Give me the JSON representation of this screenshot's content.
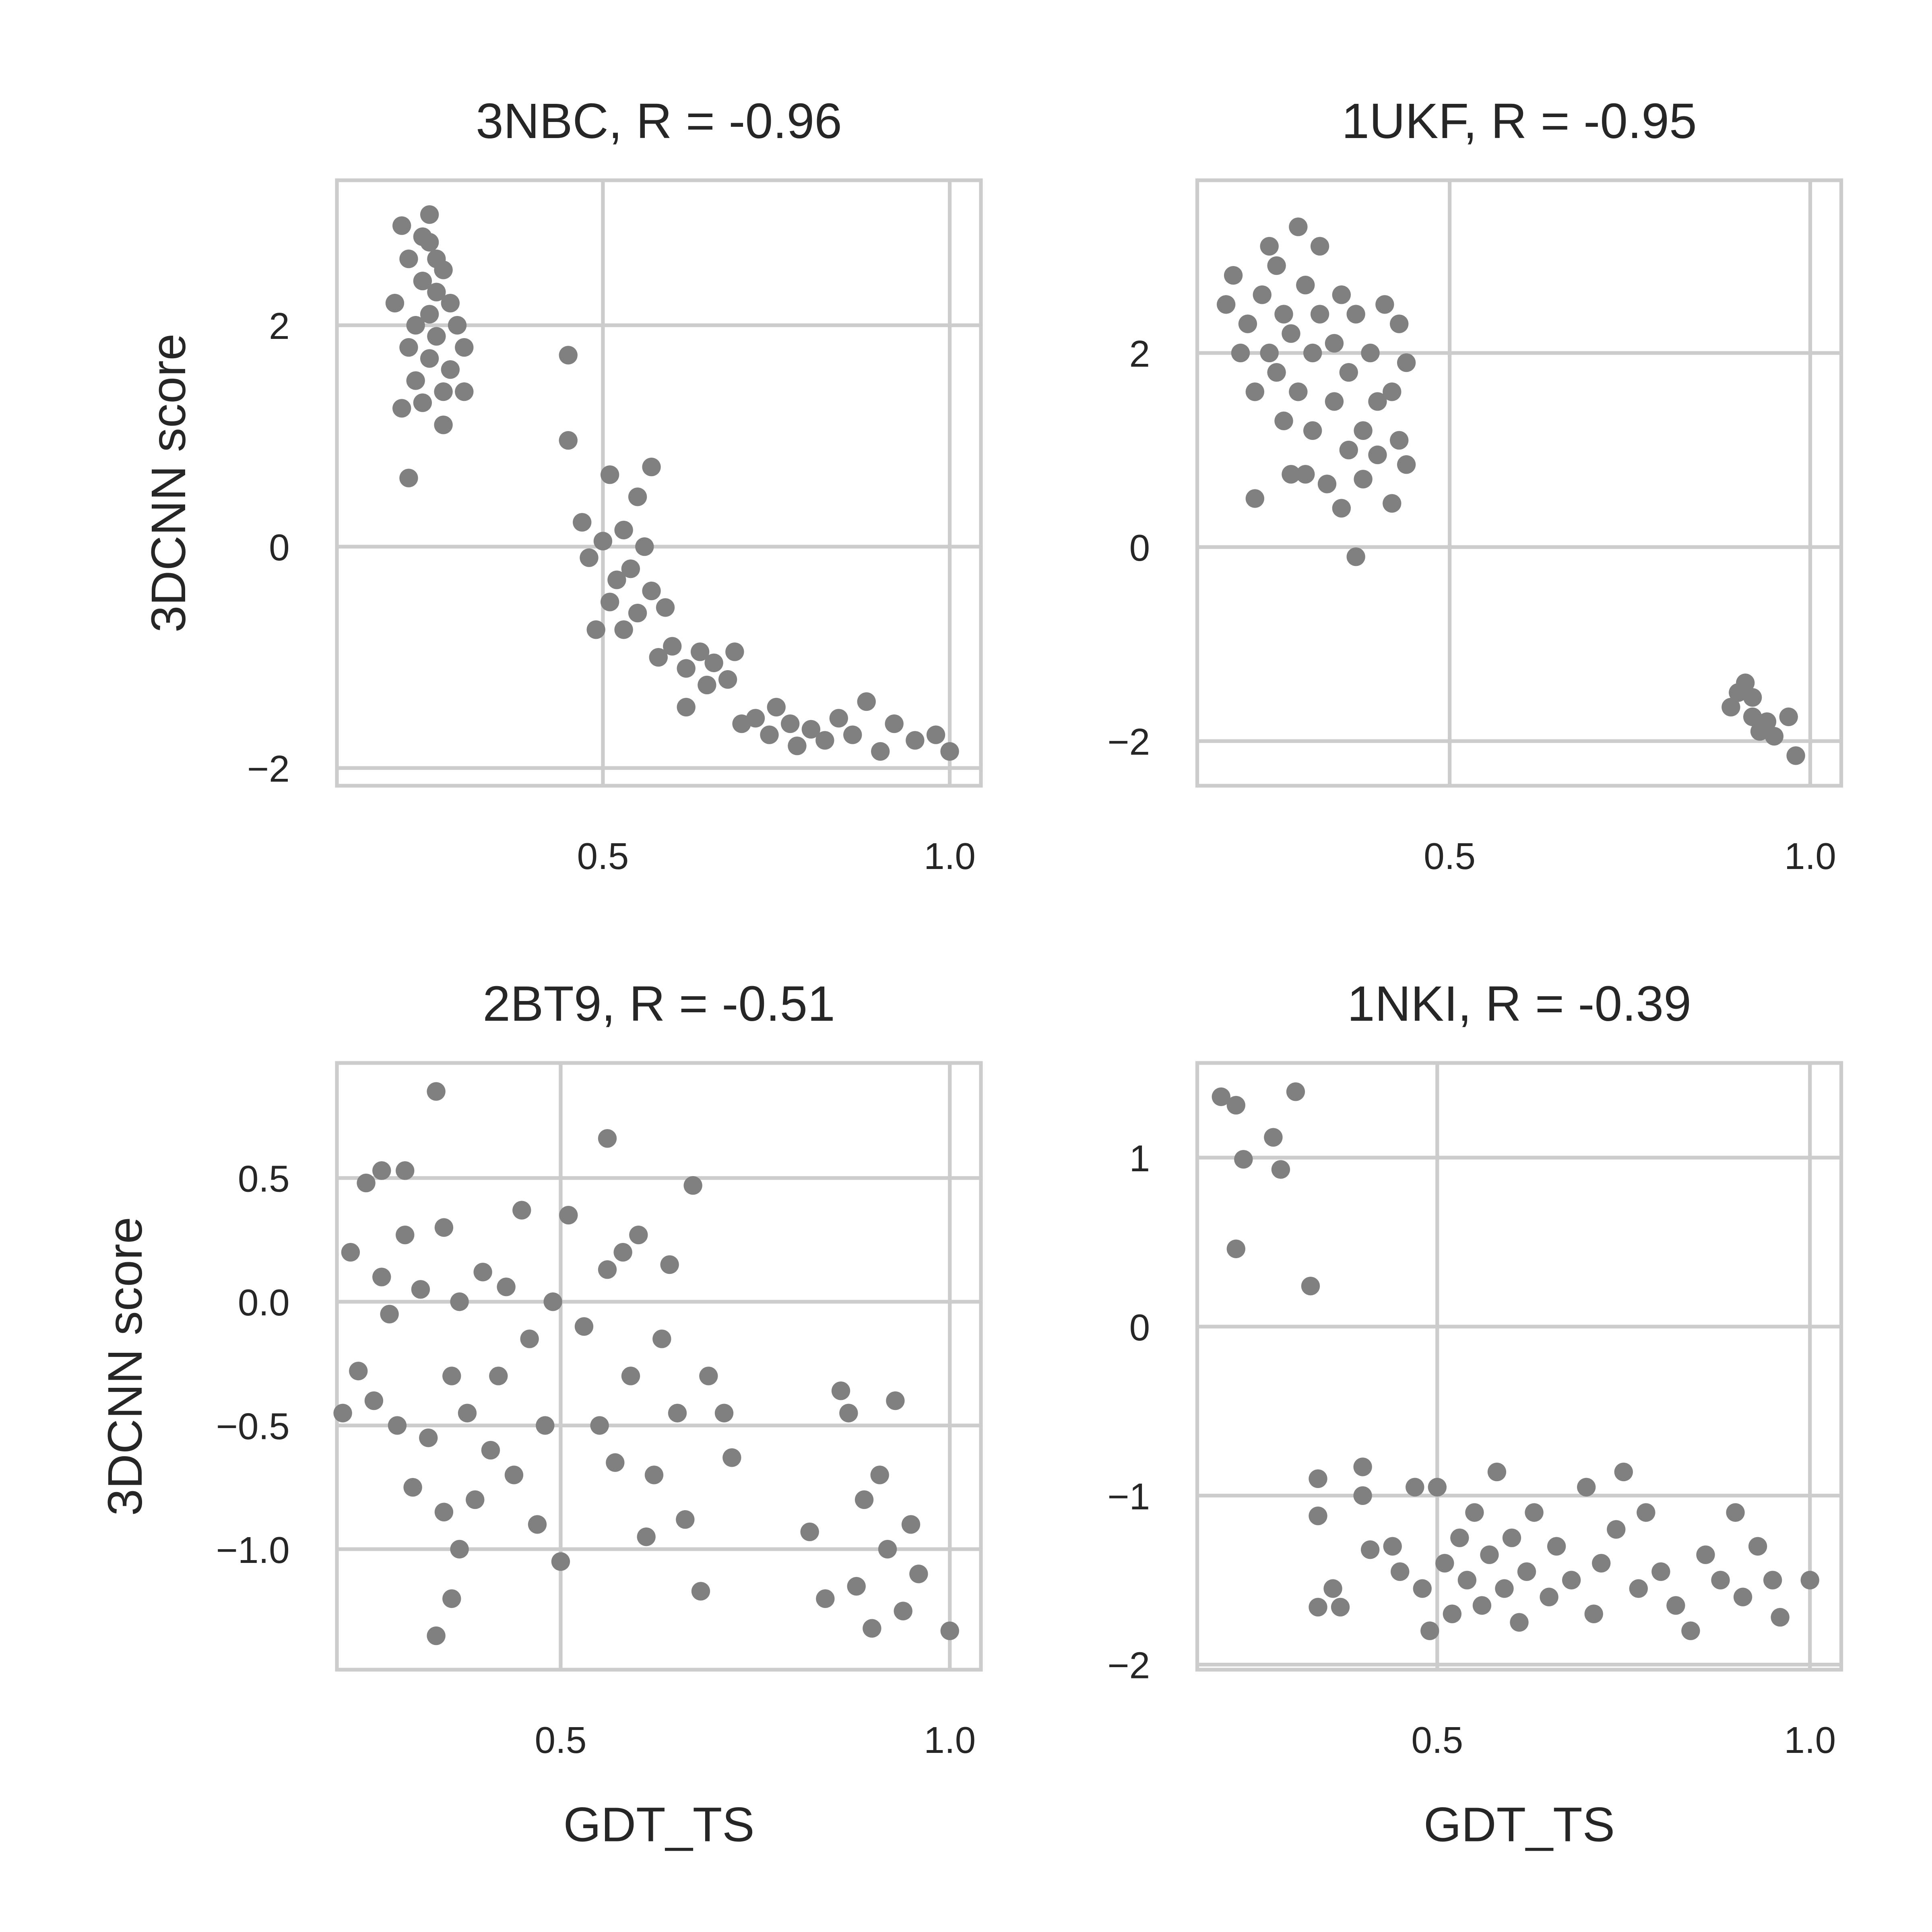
{
  "chart_data": [
    {
      "type": "scatter",
      "title": "3NBC, R = -0.96",
      "ylabel": "3DCNN score",
      "color": "#808080",
      "grid": true,
      "xlim": [
        0.1165,
        1.045
      ],
      "ylim": [
        -2.16,
        3.31
      ],
      "xticks": [
        0.5,
        {
          "value": 1,
          "label": "1.0"
        }
      ],
      "yticks": [
        {
          "value": -2,
          "label": "−2"
        },
        0,
        2
      ],
      "x": [
        0.2,
        0.21,
        0.22,
        0.22,
        0.23,
        0.23,
        0.24,
        0.24,
        0.24,
        0.25,
        0.25,
        0.25,
        0.26,
        0.26,
        0.26,
        0.27,
        0.27,
        0.28,
        0.28,
        0.27,
        0.29,
        0.3,
        0.3,
        0.22,
        0.21,
        0.25,
        0.45,
        0.45,
        0.47,
        0.48,
        0.49,
        0.5,
        0.51,
        0.51,
        0.52,
        0.53,
        0.53,
        0.54,
        0.55,
        0.55,
        0.56,
        0.57,
        0.57,
        0.58,
        0.59,
        0.6,
        0.62,
        0.62,
        0.64,
        0.65,
        0.66,
        0.68,
        0.69,
        0.7,
        0.72,
        0.74,
        0.75,
        0.77,
        0.78,
        0.8,
        0.82,
        0.84,
        0.86,
        0.88,
        0.9,
        0.92,
        0.95,
        0.98,
        1.0
      ],
      "values": [
        2.2,
        2.9,
        2.6,
        1.8,
        2.0,
        1.5,
        2.4,
        2.8,
        1.3,
        3.0,
        2.1,
        1.7,
        2.6,
        2.3,
        1.9,
        2.5,
        1.4,
        2.2,
        1.6,
        1.1,
        2.0,
        1.8,
        1.4,
        0.62,
        1.25,
        2.75,
        1.73,
        0.96,
        0.22,
        -0.1,
        -0.75,
        0.05,
        0.65,
        -0.5,
        -0.3,
        0.15,
        -0.75,
        -0.2,
        0.45,
        -0.6,
        0.0,
        -0.4,
        0.72,
        -1.0,
        -0.55,
        -0.9,
        -1.1,
        -1.45,
        -0.95,
        -1.25,
        -1.05,
        -1.2,
        -0.95,
        -1.6,
        -1.55,
        -1.7,
        -1.45,
        -1.6,
        -1.8,
        -1.65,
        -1.75,
        -1.55,
        -1.7,
        -1.4,
        -1.85,
        -1.6,
        -1.75,
        -1.7,
        -1.85
      ]
    },
    {
      "type": "scatter",
      "title": "1UKF, R = -0.95",
      "color": "#808080",
      "grid": true,
      "xlim": [
        0.15,
        1.043
      ],
      "ylim": [
        -2.46,
        3.78
      ],
      "xticks": [
        0.5,
        {
          "value": 1,
          "label": "1.0"
        }
      ],
      "yticks": [
        {
          "value": -2,
          "label": "−2"
        },
        0,
        2
      ],
      "x": [
        0.19,
        0.2,
        0.21,
        0.22,
        0.23,
        0.23,
        0.24,
        0.25,
        0.25,
        0.26,
        0.26,
        0.27,
        0.27,
        0.28,
        0.28,
        0.29,
        0.29,
        0.3,
        0.3,
        0.31,
        0.31,
        0.32,
        0.32,
        0.33,
        0.34,
        0.34,
        0.35,
        0.35,
        0.36,
        0.36,
        0.37,
        0.37,
        0.38,
        0.38,
        0.39,
        0.4,
        0.4,
        0.41,
        0.42,
        0.42,
        0.43,
        0.43,
        0.44,
        0.44,
        0.89,
        0.9,
        0.91,
        0.92,
        0.92,
        0.93,
        0.94,
        0.95,
        0.97,
        0.98
      ],
      "values": [
        2.5,
        2.8,
        2.0,
        2.3,
        1.6,
        0.5,
        2.6,
        3.1,
        2.0,
        1.8,
        2.9,
        2.4,
        1.3,
        0.75,
        2.2,
        3.3,
        1.6,
        2.7,
        0.75,
        2.0,
        1.2,
        3.1,
        2.4,
        0.65,
        1.5,
        2.1,
        2.6,
        0.4,
        1.0,
        1.8,
        -0.1,
        2.4,
        1.2,
        0.7,
        2.0,
        0.95,
        1.5,
        2.5,
        1.6,
        0.45,
        1.1,
        2.3,
        1.9,
        0.85,
        -1.65,
        -1.5,
        -1.4,
        -1.75,
        -1.55,
        -1.9,
        -1.8,
        -1.95,
        -1.75,
        -2.15
      ]
    },
    {
      "type": "scatter",
      "title": "2BT9, R = -0.51",
      "ylabel": "3DCNN score",
      "xlabel": "GDT_TS",
      "color": "#808080",
      "grid": true,
      "xlim": [
        0.2125,
        1.04
      ],
      "ylim": [
        -1.487,
        0.965
      ],
      "xticks": [
        0.5,
        {
          "value": 1,
          "label": "1.0"
        }
      ],
      "yticks": [
        {
          "value": -1,
          "label": "−1.0"
        },
        {
          "value": -0.5,
          "label": "−0.5"
        },
        {
          "value": 0,
          "label": "0.0"
        },
        0.5
      ],
      "x": [
        0.22,
        0.23,
        0.24,
        0.25,
        0.26,
        0.27,
        0.27,
        0.28,
        0.29,
        0.3,
        0.3,
        0.31,
        0.32,
        0.33,
        0.34,
        0.34,
        0.35,
        0.35,
        0.36,
        0.36,
        0.37,
        0.37,
        0.38,
        0.39,
        0.4,
        0.41,
        0.42,
        0.43,
        0.44,
        0.45,
        0.46,
        0.47,
        0.48,
        0.49,
        0.5,
        0.51,
        0.53,
        0.55,
        0.56,
        0.56,
        0.57,
        0.58,
        0.59,
        0.6,
        0.61,
        0.62,
        0.63,
        0.64,
        0.65,
        0.66,
        0.67,
        0.68,
        0.69,
        0.71,
        0.72,
        0.82,
        0.84,
        0.86,
        0.87,
        0.88,
        0.89,
        0.9,
        0.91,
        0.92,
        0.93,
        0.94,
        0.95,
        0.96,
        1.0
      ],
      "values": [
        -0.45,
        0.2,
        -0.28,
        0.48,
        -0.4,
        0.1,
        0.53,
        -0.05,
        -0.5,
        0.53,
        0.27,
        -0.75,
        0.05,
        -0.55,
        0.85,
        -1.35,
        0.3,
        -0.85,
        -0.3,
        -1.2,
        0.0,
        -1.0,
        -0.45,
        -0.8,
        0.12,
        -0.6,
        -0.3,
        0.06,
        -0.7,
        0.37,
        -0.15,
        -0.9,
        -0.5,
        0.0,
        -1.05,
        0.35,
        -0.1,
        -0.5,
        0.66,
        0.13,
        -0.65,
        0.2,
        -0.3,
        0.27,
        -0.95,
        -0.7,
        -0.15,
        0.15,
        -0.45,
        -0.88,
        0.47,
        -1.17,
        -0.3,
        -0.45,
        -0.63,
        -0.93,
        -1.2,
        -0.36,
        -0.45,
        -1.15,
        -0.8,
        -1.32,
        -0.7,
        -1.0,
        -0.4,
        -1.25,
        -0.9,
        -1.1,
        -1.33
      ]
    },
    {
      "type": "scatter",
      "title": "1NKI, R = -0.39",
      "xlabel": "GDT_TS",
      "color": "#808080",
      "grid": true,
      "xlim": [
        0.178,
        1.042
      ],
      "ylim": [
        -2.03,
        1.56
      ],
      "xticks": [
        0.5,
        {
          "value": 1,
          "label": "1.0"
        }
      ],
      "yticks": [
        {
          "value": -2,
          "label": "−2"
        },
        {
          "value": -1,
          "label": "−1"
        },
        0,
        1
      ],
      "x": [
        0.21,
        0.23,
        0.24,
        0.23,
        0.28,
        0.29,
        0.31,
        0.33,
        0.34,
        0.34,
        0.34,
        0.36,
        0.37,
        0.4,
        0.4,
        0.41,
        0.44,
        0.45,
        0.47,
        0.48,
        0.49,
        0.5,
        0.51,
        0.52,
        0.53,
        0.54,
        0.55,
        0.56,
        0.57,
        0.58,
        0.59,
        0.6,
        0.61,
        0.62,
        0.63,
        0.65,
        0.66,
        0.68,
        0.7,
        0.71,
        0.72,
        0.74,
        0.75,
        0.77,
        0.78,
        0.8,
        0.82,
        0.84,
        0.86,
        0.88,
        0.9,
        0.91,
        0.93,
        0.95,
        0.96,
        1.0
      ],
      "values": [
        1.36,
        1.31,
        0.99,
        0.46,
        1.12,
        0.93,
        1.39,
        0.24,
        -0.9,
        -1.12,
        -1.66,
        -1.55,
        -1.66,
        -0.83,
        -1.0,
        -1.32,
        -1.3,
        -1.45,
        -0.95,
        -1.55,
        -1.8,
        -0.95,
        -1.4,
        -1.7,
        -1.25,
        -1.5,
        -1.1,
        -1.65,
        -1.35,
        -0.86,
        -1.55,
        -1.25,
        -1.75,
        -1.45,
        -1.1,
        -1.6,
        -1.3,
        -1.5,
        -0.95,
        -1.7,
        -1.4,
        -1.2,
        -0.86,
        -1.55,
        -1.1,
        -1.45,
        -1.65,
        -1.8,
        -1.35,
        -1.5,
        -1.1,
        -1.6,
        -1.3,
        -1.5,
        -1.72,
        -1.5
      ]
    }
  ]
}
